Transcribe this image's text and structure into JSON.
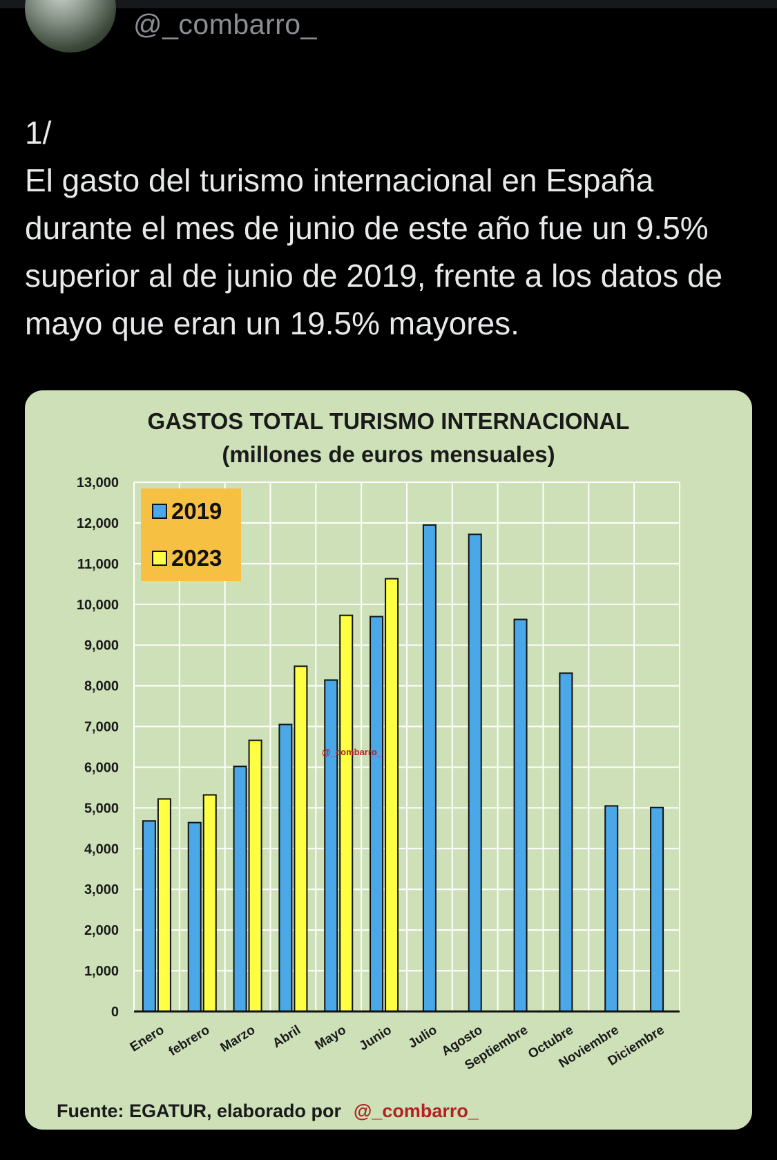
{
  "header": {
    "handle": "@_combarro_"
  },
  "tweet": {
    "lines": [
      "1/",
      "El gasto del turismo internacional en España durante el mes de junio de este año fue un 9.5% superior al de junio de 2019, frente a los datos de mayo que eran un 19.5% mayores."
    ]
  },
  "chart_data": {
    "type": "bar",
    "title": "GASTOS TOTAL TURISMO INTERNACIONAL",
    "subtitle": "(millones de euros mensuales)",
    "categories": [
      "Enero",
      "febrero",
      "Marzo",
      "Abril",
      "Mayo",
      "Junio",
      "Julio",
      "Agosto",
      "Septiembre",
      "Octubre",
      "Noviembre",
      "Diciembre"
    ],
    "series": [
      {
        "name": "2019",
        "color": "#4aa8e8",
        "values": [
          4680,
          4640,
          6020,
          7050,
          8140,
          9700,
          11950,
          11720,
          9630,
          8310,
          5050,
          5010
        ]
      },
      {
        "name": "2023",
        "color": "#ffff44",
        "values": [
          5220,
          5320,
          6660,
          8480,
          9730,
          10630,
          null,
          null,
          null,
          null,
          null,
          null
        ]
      }
    ],
    "ylim": [
      0,
      13000
    ],
    "yticks": [
      "0",
      "1,000",
      "2,000",
      "3,000",
      "4,000",
      "5,000",
      "6,000",
      "7,000",
      "8,000",
      "9,000",
      "10,000",
      "11,000",
      "12,000",
      "13,000"
    ],
    "grid": true,
    "legend": "top-left",
    "watermark": "@_combarro_",
    "source_label": "Fuente: EGATUR, elaborado por",
    "source_credit": "@_combarro_"
  }
}
